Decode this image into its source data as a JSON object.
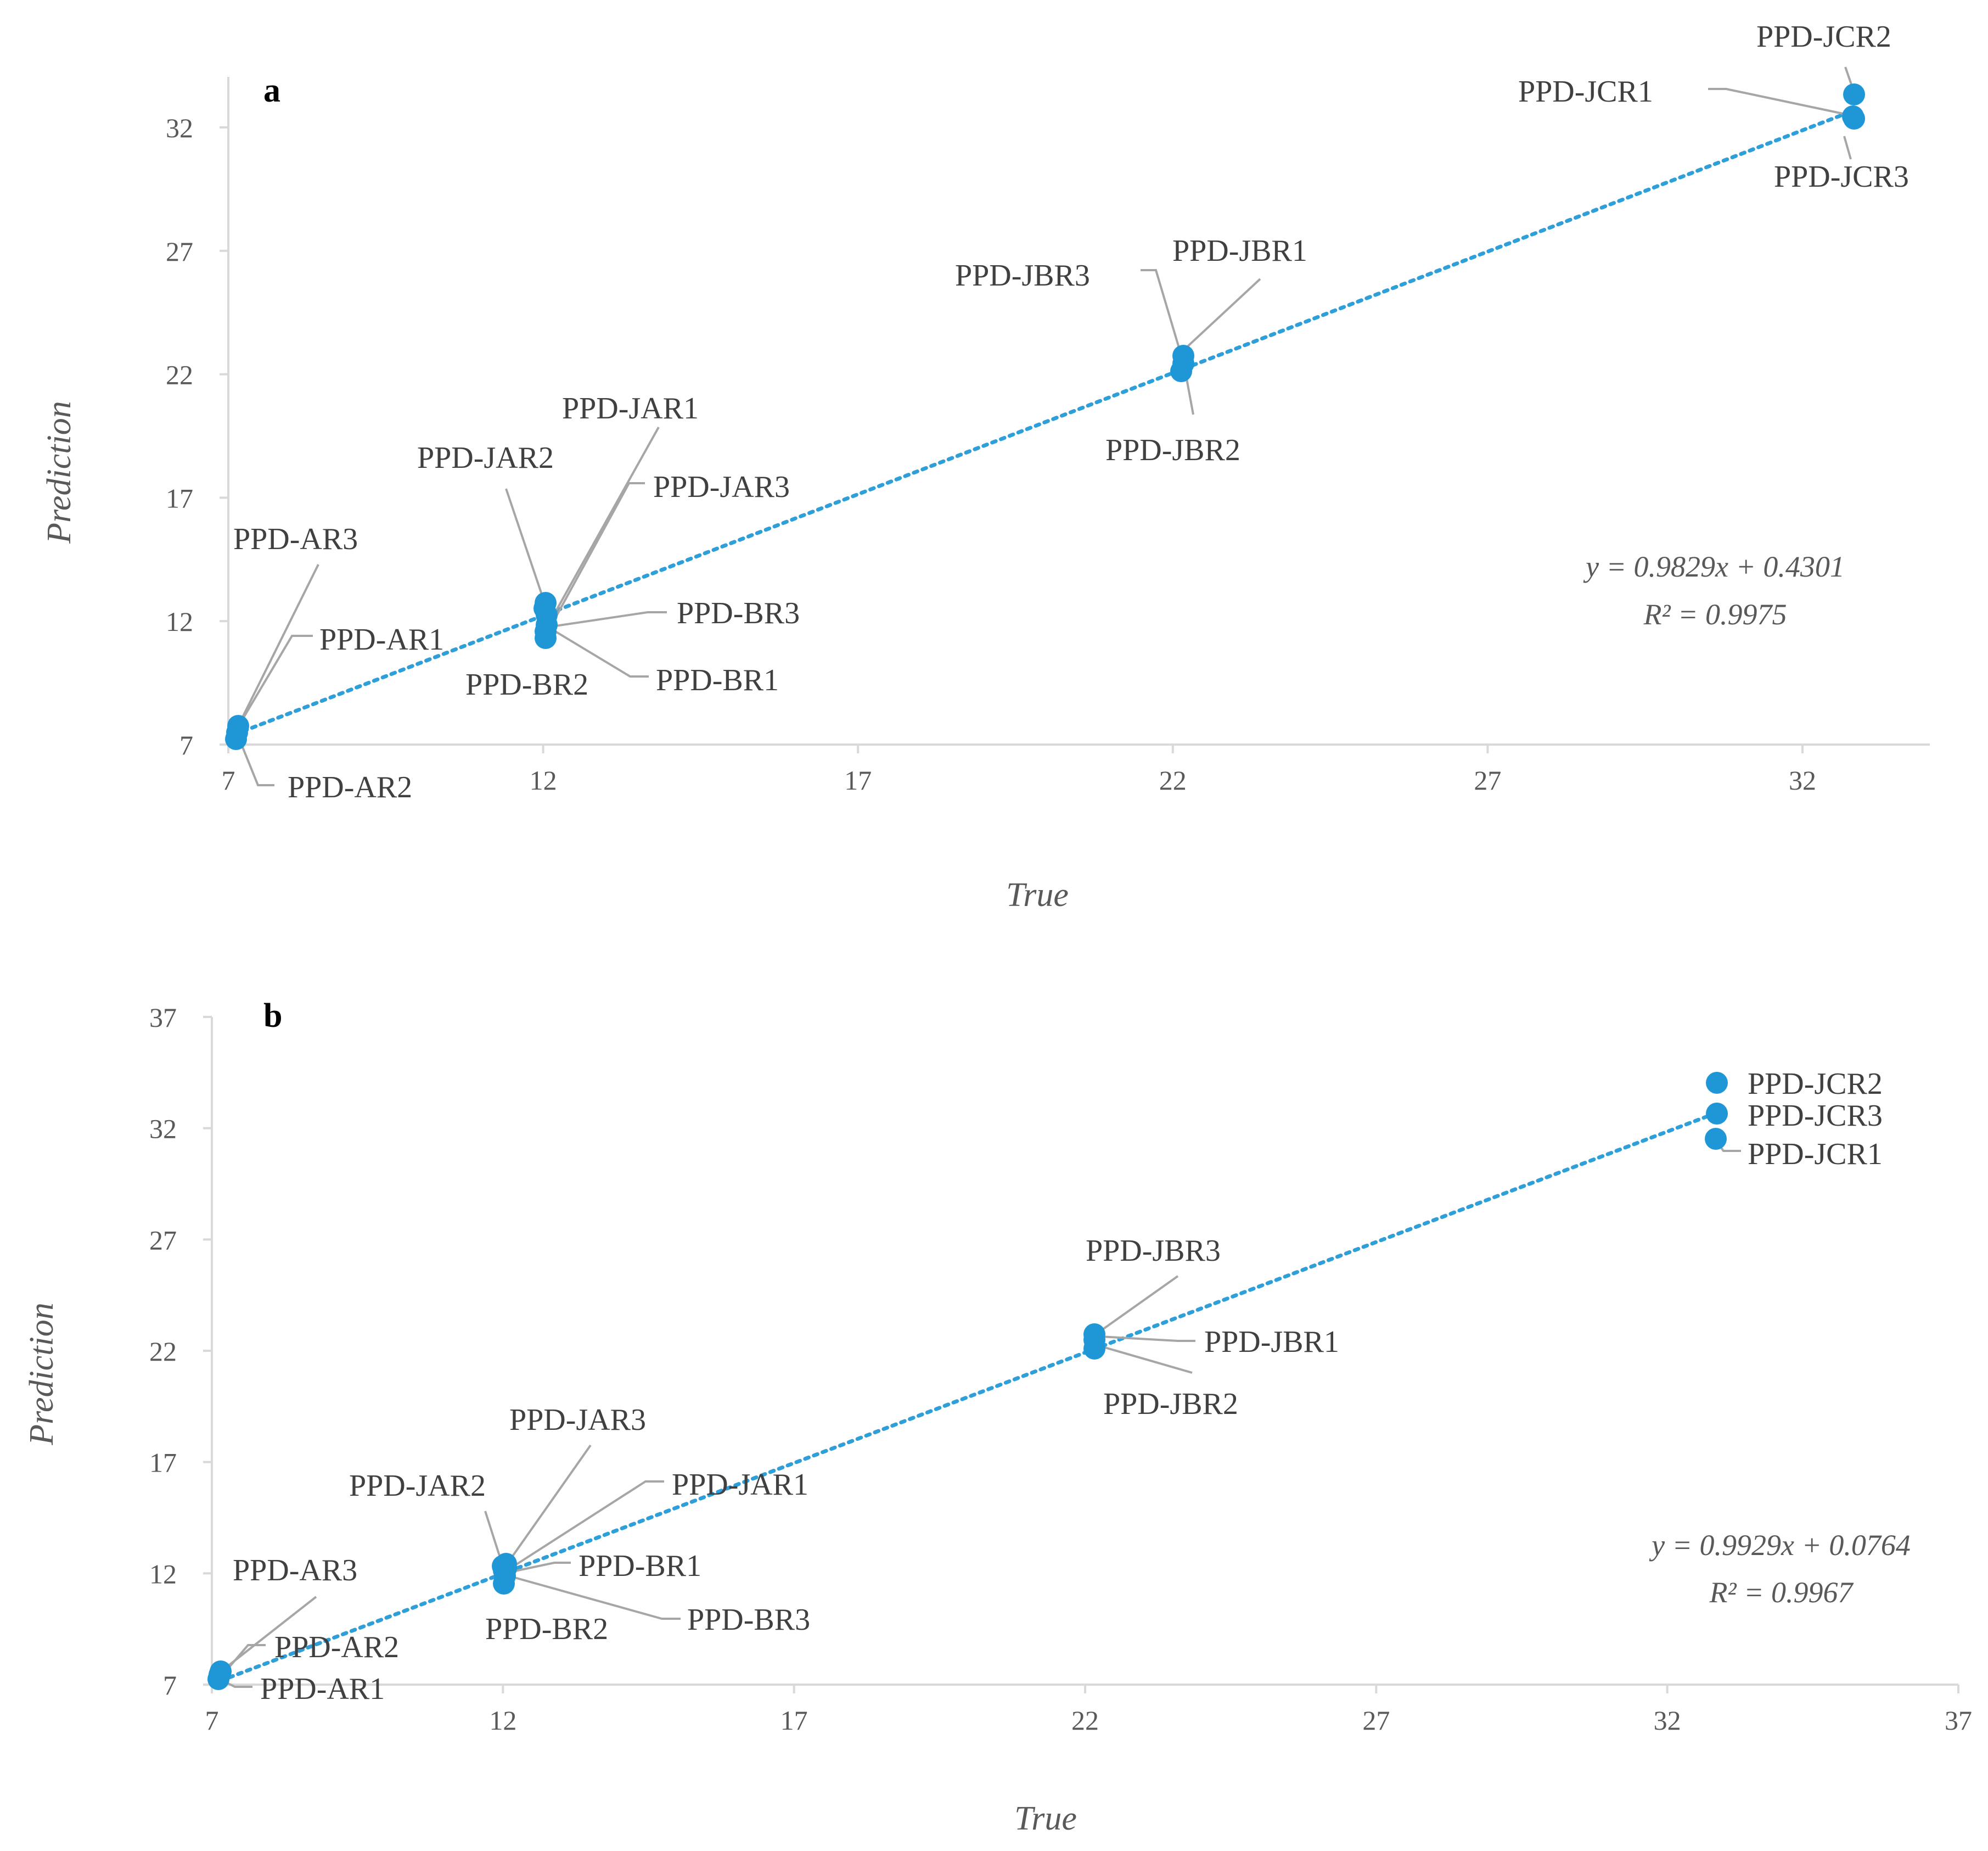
{
  "chart_data": [
    {
      "type": "scatter",
      "panel": "a",
      "xlabel": "True",
      "ylabel": "Prediction",
      "xlim": [
        7,
        34
      ],
      "ylim": [
        7,
        33
      ],
      "xticks": [
        7,
        12,
        17,
        22,
        27,
        32
      ],
      "yticks": [
        7,
        12,
        17,
        22,
        27,
        32
      ],
      "trendline": {
        "slope": 0.9829,
        "intercept": 0.4301
      },
      "equation": "y = 0.9829x + 0.4301",
      "r2": "R² = 0.9975",
      "points": [
        {
          "label": "PPD-AR1",
          "x": 7.1,
          "y": 7.6
        },
        {
          "label": "PPD-AR2",
          "x": 7.1,
          "y": 7.4
        },
        {
          "label": "PPD-AR3",
          "x": 7.1,
          "y": 7.8
        },
        {
          "label": "PPD-BR1",
          "x": 12.0,
          "y": 11.8
        },
        {
          "label": "PPD-BR2",
          "x": 12.0,
          "y": 11.4
        },
        {
          "label": "PPD-BR3",
          "x": 12.0,
          "y": 12.2
        },
        {
          "label": "PPD-JAR1",
          "x": 12.0,
          "y": 12.8
        },
        {
          "label": "PPD-JAR2",
          "x": 12.0,
          "y": 12.6
        },
        {
          "label": "PPD-JAR3",
          "x": 12.0,
          "y": 12.4
        },
        {
          "label": "PPD-JBR1",
          "x": 22.1,
          "y": 22.7
        },
        {
          "label": "PPD-JBR2",
          "x": 22.1,
          "y": 22.1
        },
        {
          "label": "PPD-JBR3",
          "x": 22.1,
          "y": 22.4
        },
        {
          "label": "PPD-JCR1",
          "x": 32.8,
          "y": 32.5
        },
        {
          "label": "PPD-JCR2",
          "x": 32.8,
          "y": 33.3
        },
        {
          "label": "PPD-JCR3",
          "x": 32.8,
          "y": 32.4
        }
      ]
    },
    {
      "type": "scatter",
      "panel": "b",
      "xlabel": "True",
      "ylabel": "Prediction",
      "xlim": [
        7,
        37
      ],
      "ylim": [
        7,
        37
      ],
      "xticks": [
        7,
        12,
        17,
        22,
        27,
        32,
        37
      ],
      "yticks": [
        7,
        12,
        17,
        22,
        27,
        32,
        37
      ],
      "trendline": {
        "slope": 0.9929,
        "intercept": 0.0764
      },
      "equation": "y = 0.9929x + 0.0764",
      "r2": "R² = 0.9967",
      "points": [
        {
          "label": "PPD-AR1",
          "x": 7.3,
          "y": 7.2
        },
        {
          "label": "PPD-AR2",
          "x": 7.3,
          "y": 7.4
        },
        {
          "label": "PPD-AR3",
          "x": 7.3,
          "y": 7.5
        },
        {
          "label": "PPD-BR1",
          "x": 12.0,
          "y": 12.0
        },
        {
          "label": "PPD-BR2",
          "x": 12.0,
          "y": 11.3
        },
        {
          "label": "PPD-BR3",
          "x": 12.0,
          "y": 11.9
        },
        {
          "label": "PPD-JAR1",
          "x": 12.1,
          "y": 12.4
        },
        {
          "label": "PPD-JAR2",
          "x": 12.0,
          "y": 12.3
        },
        {
          "label": "PPD-JAR3",
          "x": 12.1,
          "y": 12.2
        },
        {
          "label": "PPD-JBR1",
          "x": 22.1,
          "y": 22.4
        },
        {
          "label": "PPD-JBR2",
          "x": 22.1,
          "y": 21.8
        },
        {
          "label": "PPD-JBR3",
          "x": 22.1,
          "y": 22.6
        },
        {
          "label": "PPD-JCR1",
          "x": 32.8,
          "y": 31.4
        },
        {
          "label": "PPD-JCR2",
          "x": 32.8,
          "y": 33.9
        },
        {
          "label": "PPD-JCR3",
          "x": 32.8,
          "y": 32.5
        }
      ]
    }
  ]
}
